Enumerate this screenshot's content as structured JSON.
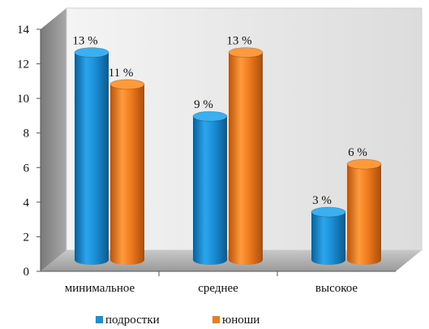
{
  "chart_data": {
    "type": "bar",
    "style": "3d-cylinder",
    "categories": [
      "минимальное",
      "среднее",
      "высокое"
    ],
    "series": [
      {
        "name": "подростки",
        "values": [
          13,
          9,
          3
        ],
        "labels": [
          "13 %",
          "9 %",
          "3 %"
        ],
        "color": "#1b8fd6"
      },
      {
        "name": "юноши",
        "values": [
          11,
          13,
          6
        ],
        "labels": [
          "11 %",
          "13 %",
          "6 %"
        ],
        "color": "#f07c1e"
      }
    ],
    "ylim": [
      0,
      14
    ],
    "yticks": [
      0,
      2,
      4,
      6,
      8,
      10,
      12,
      14
    ],
    "grid": false,
    "legend": "bottom"
  }
}
